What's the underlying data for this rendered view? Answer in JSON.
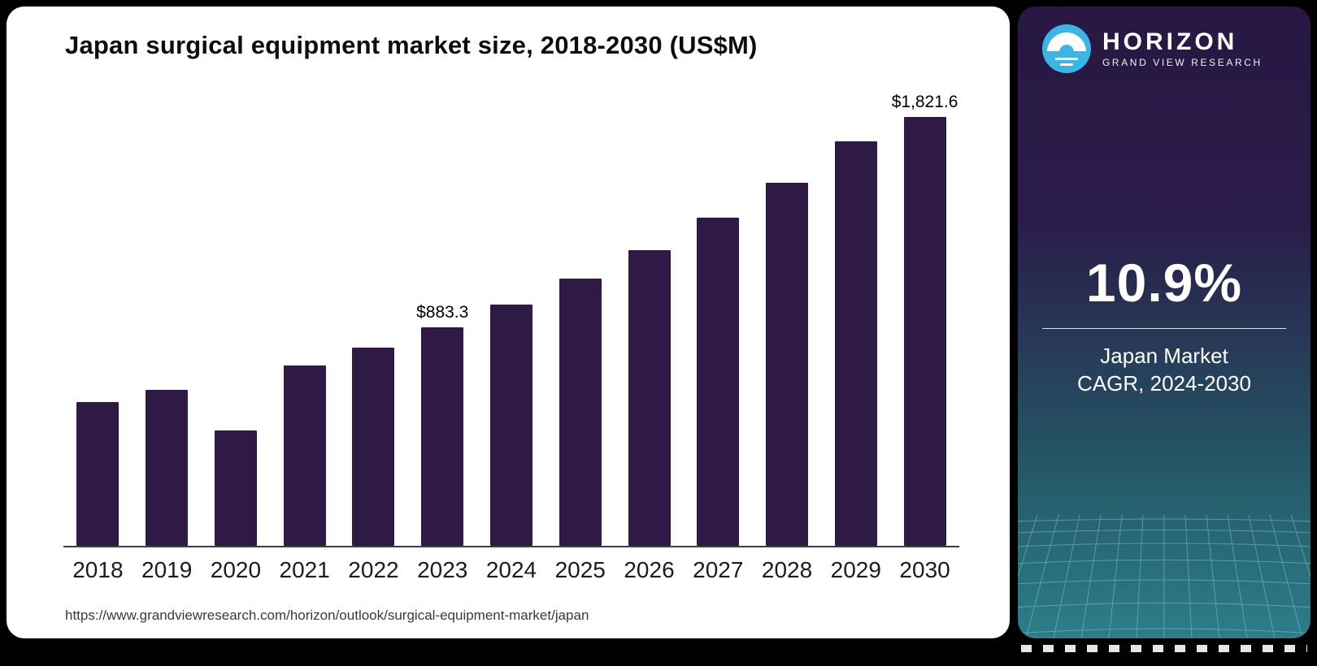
{
  "page": {
    "source_url": "https://www.grandviewresearch.com/horizon/outlook/surgical-equipment-market/japan"
  },
  "chart_data": {
    "type": "bar",
    "title": "Japan surgical equipment market size, 2018-2030 (US$M)",
    "categories": [
      "2018",
      "2019",
      "2020",
      "2021",
      "2022",
      "2023",
      "2024",
      "2025",
      "2026",
      "2027",
      "2028",
      "2029",
      "2030"
    ],
    "values": [
      580,
      630,
      467,
      727,
      800,
      883.3,
      975,
      1078,
      1193,
      1325,
      1467,
      1633,
      1821.6
    ],
    "point_labels": {
      "2023": "$883.3",
      "2030": "$1,821.6"
    },
    "xlabel": "",
    "ylabel": "",
    "ylim": [
      0,
      1830
    ],
    "grid": false,
    "legend": false,
    "bar_color": "#2f1a45"
  },
  "sidebar": {
    "brand": "HORIZON",
    "brand_sub": "GRAND VIEW RESEARCH",
    "stat_value": "10.9%",
    "stat_line1": "Japan Market",
    "stat_line2": "CAGR, 2024-2030",
    "logo_blue": "#3cb4e4",
    "gradient_top": "#281743",
    "gradient_bottom": "#2d7e89"
  }
}
